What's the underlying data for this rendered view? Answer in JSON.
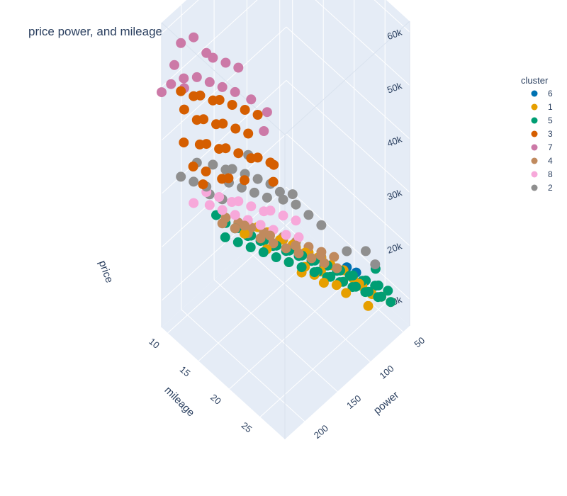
{
  "chart_data": {
    "type": "scatter3d",
    "title": "price power, and mileage",
    "axes": {
      "x": {
        "label": "power",
        "ticks": [
          "50",
          "100",
          "150",
          "200"
        ],
        "range": [
          40,
          230
        ]
      },
      "y": {
        "label": "mileage",
        "ticks": [
          "10",
          "15",
          "20",
          "25"
        ],
        "range": [
          9,
          29
        ]
      },
      "z": {
        "label": "price",
        "ticks": [
          "10k",
          "20k",
          "30k",
          "40k",
          "50k",
          "60k"
        ],
        "range": [
          5000,
          62000
        ]
      }
    },
    "legend": {
      "title": "cluster",
      "placement": "top-right",
      "entries": [
        {
          "name": "6",
          "color": "#0072B2"
        },
        {
          "name": "1",
          "color": "#E69F00"
        },
        {
          "name": "5",
          "color": "#009E73"
        },
        {
          "name": "3",
          "color": "#D55E00"
        },
        {
          "name": "7",
          "color": "#CC79A7"
        },
        {
          "name": "4",
          "color": "#C08A5E"
        },
        {
          "name": "8",
          "color": "#F7A8DA"
        },
        {
          "name": "2",
          "color": "#8F8F8F"
        }
      ]
    },
    "series": [
      {
        "name": "6",
        "color": "#0072B2",
        "points": [
          [
            60,
            24,
            10500
          ],
          [
            65,
            23,
            11500
          ],
          [
            70,
            22,
            12000
          ],
          [
            55,
            25,
            10000
          ]
        ]
      },
      {
        "name": "1",
        "color": "#E69F00",
        "points": [
          [
            60,
            25,
            9000
          ],
          [
            65,
            24,
            10000
          ],
          [
            70,
            23,
            11000
          ],
          [
            75,
            22,
            12000
          ],
          [
            80,
            22,
            12500
          ],
          [
            85,
            21,
            13000
          ],
          [
            90,
            20,
            14000
          ],
          [
            95,
            20,
            14500
          ],
          [
            100,
            19,
            15000
          ],
          [
            105,
            19,
            15500
          ],
          [
            110,
            18,
            16000
          ],
          [
            115,
            18,
            17000
          ],
          [
            120,
            17,
            17500
          ],
          [
            125,
            17,
            18000
          ],
          [
            130,
            16,
            19000
          ],
          [
            135,
            16,
            19500
          ],
          [
            140,
            15,
            20000
          ],
          [
            70,
            24,
            11000
          ],
          [
            85,
            23,
            12000
          ],
          [
            100,
            21,
            13500
          ],
          [
            115,
            20,
            15000
          ],
          [
            130,
            19,
            16500
          ],
          [
            145,
            17,
            18500
          ],
          [
            160,
            15,
            21000
          ],
          [
            75,
            26,
            9500
          ],
          [
            90,
            24,
            11500
          ],
          [
            105,
            22,
            13000
          ],
          [
            120,
            20,
            14500
          ],
          [
            55,
            26,
            9000
          ],
          [
            50,
            27,
            8500
          ],
          [
            95,
            23,
            12500
          ],
          [
            110,
            21,
            14000
          ]
        ]
      },
      {
        "name": "5",
        "color": "#009E73",
        "points": [
          [
            45,
            26,
            9000
          ],
          [
            50,
            25,
            9500
          ],
          [
            55,
            25,
            10000
          ],
          [
            60,
            24,
            10500
          ],
          [
            65,
            24,
            11000
          ],
          [
            70,
            23,
            11500
          ],
          [
            75,
            23,
            12000
          ],
          [
            80,
            22,
            12500
          ],
          [
            85,
            22,
            13000
          ],
          [
            90,
            21,
            13500
          ],
          [
            95,
            21,
            14000
          ],
          [
            100,
            20,
            14500
          ],
          [
            105,
            20,
            15000
          ],
          [
            110,
            19,
            15500
          ],
          [
            115,
            19,
            16000
          ],
          [
            120,
            18,
            16500
          ],
          [
            125,
            18,
            17000
          ],
          [
            130,
            17,
            17500
          ],
          [
            135,
            17,
            18000
          ],
          [
            140,
            16,
            18500
          ],
          [
            145,
            16,
            19000
          ],
          [
            150,
            15,
            19500
          ],
          [
            155,
            15,
            20000
          ],
          [
            160,
            14,
            21000
          ],
          [
            165,
            14,
            21500
          ],
          [
            170,
            13,
            22000
          ],
          [
            50,
            27,
            8500
          ],
          [
            55,
            26,
            9000
          ],
          [
            60,
            26,
            9500
          ],
          [
            65,
            25,
            10000
          ],
          [
            70,
            25,
            10500
          ],
          [
            75,
            24,
            11000
          ],
          [
            80,
            24,
            11500
          ],
          [
            85,
            23,
            12000
          ],
          [
            90,
            23,
            12500
          ],
          [
            95,
            22,
            13000
          ],
          [
            100,
            22,
            13500
          ],
          [
            105,
            21,
            14000
          ],
          [
            110,
            21,
            14500
          ],
          [
            120,
            20,
            15500
          ],
          [
            130,
            19,
            16500
          ],
          [
            140,
            18,
            17500
          ],
          [
            150,
            17,
            18500
          ],
          [
            160,
            16,
            19500
          ],
          [
            170,
            15,
            20500
          ],
          [
            180,
            14,
            21500
          ],
          [
            45,
            24,
            11000
          ],
          [
            175,
            12,
            23000
          ]
        ]
      },
      {
        "name": "3",
        "color": "#D55E00",
        "points": [
          [
            140,
            15,
            41000
          ],
          [
            150,
            14,
            42000
          ],
          [
            160,
            13,
            43000
          ],
          [
            170,
            12,
            44000
          ],
          [
            180,
            12,
            45000
          ],
          [
            190,
            11,
            46000
          ],
          [
            200,
            11,
            47000
          ],
          [
            210,
            10,
            48000
          ],
          [
            145,
            14,
            37000
          ],
          [
            155,
            13,
            38000
          ],
          [
            165,
            12,
            39000
          ],
          [
            175,
            12,
            40000
          ],
          [
            185,
            11,
            41000
          ],
          [
            195,
            11,
            42000
          ],
          [
            150,
            15,
            34000
          ],
          [
            160,
            14,
            35000
          ],
          [
            170,
            13,
            36000
          ],
          [
            180,
            13,
            37000
          ],
          [
            190,
            12,
            38000
          ],
          [
            200,
            12,
            39000
          ],
          [
            130,
            16,
            32000
          ],
          [
            140,
            15,
            33000
          ],
          [
            160,
            15,
            31000
          ],
          [
            175,
            14,
            32000
          ],
          [
            185,
            14,
            33000
          ],
          [
            200,
            13,
            35000
          ],
          [
            210,
            12,
            36000
          ],
          [
            215,
            11,
            40000
          ],
          [
            205,
            10,
            44000
          ],
          [
            195,
            12,
            31000
          ],
          [
            125,
            16,
            31000
          ],
          [
            135,
            17,
            30000
          ]
        ]
      },
      {
        "name": "7",
        "color": "#CC79A7",
        "points": [
          [
            200,
            11,
            58000
          ],
          [
            210,
            10,
            57000
          ],
          [
            190,
            12,
            55000
          ],
          [
            220,
            10,
            54000
          ],
          [
            180,
            12,
            53000
          ],
          [
            170,
            13,
            52000
          ],
          [
            160,
            14,
            51000
          ],
          [
            215,
            11,
            52000
          ],
          [
            225,
            10,
            51000
          ],
          [
            195,
            11,
            50000
          ],
          [
            185,
            12,
            49000
          ],
          [
            175,
            13,
            48000
          ],
          [
            165,
            14,
            47000
          ],
          [
            230,
            9,
            49000
          ],
          [
            150,
            15,
            45000
          ],
          [
            135,
            16,
            42000
          ],
          [
            205,
            10,
            48000
          ],
          [
            140,
            16,
            39000
          ]
        ]
      },
      {
        "name": "4",
        "color": "#C08A5E",
        "points": [
          [
            80,
            21,
            14000
          ],
          [
            90,
            20,
            15000
          ],
          [
            100,
            19,
            16000
          ],
          [
            110,
            18,
            17000
          ],
          [
            120,
            17,
            18000
          ],
          [
            130,
            16,
            19000
          ],
          [
            140,
            16,
            20000
          ],
          [
            150,
            15,
            21000
          ],
          [
            160,
            14,
            22000
          ],
          [
            170,
            13,
            23000
          ],
          [
            85,
            22,
            13500
          ],
          [
            95,
            21,
            14500
          ],
          [
            105,
            20,
            15500
          ],
          [
            115,
            19,
            16500
          ],
          [
            125,
            18,
            17500
          ],
          [
            135,
            17,
            18500
          ],
          [
            145,
            16,
            19500
          ],
          [
            155,
            15,
            20500
          ],
          [
            165,
            14,
            21500
          ],
          [
            175,
            13,
            22500
          ],
          [
            100,
            21,
            16500
          ],
          [
            120,
            19,
            18500
          ],
          [
            140,
            17,
            20500
          ],
          [
            160,
            15,
            22500
          ]
        ]
      },
      {
        "name": "8",
        "color": "#F7A8DA",
        "points": [
          [
            120,
            17,
            22000
          ],
          [
            130,
            16,
            23000
          ],
          [
            140,
            16,
            24000
          ],
          [
            150,
            15,
            25000
          ],
          [
            160,
            14,
            26000
          ],
          [
            170,
            14,
            27000
          ],
          [
            180,
            13,
            28000
          ],
          [
            190,
            12,
            29000
          ],
          [
            125,
            18,
            20000
          ],
          [
            135,
            17,
            21000
          ],
          [
            145,
            16,
            22000
          ],
          [
            155,
            15,
            23000
          ],
          [
            165,
            14,
            24000
          ],
          [
            175,
            13,
            25000
          ],
          [
            185,
            12,
            26000
          ],
          [
            200,
            11,
            27000
          ],
          [
            110,
            18,
            21000
          ],
          [
            115,
            19,
            19500
          ]
        ]
      },
      {
        "name": "2",
        "color": "#8F8F8F",
        "points": [
          [
            130,
            16,
            28000
          ],
          [
            140,
            15,
            29000
          ],
          [
            150,
            14,
            30000
          ],
          [
            160,
            13,
            31000
          ],
          [
            170,
            13,
            32000
          ],
          [
            180,
            12,
            33000
          ],
          [
            190,
            12,
            30000
          ],
          [
            200,
            11,
            31000
          ],
          [
            135,
            16,
            26000
          ],
          [
            145,
            15,
            27000
          ],
          [
            155,
            14,
            28000
          ],
          [
            165,
            13,
            29000
          ],
          [
            175,
            13,
            27000
          ],
          [
            185,
            12,
            28000
          ],
          [
            120,
            17,
            25000
          ],
          [
            110,
            18,
            24000
          ],
          [
            100,
            19,
            22000
          ],
          [
            90,
            20,
            20000
          ],
          [
            70,
            22,
            15000
          ],
          [
            60,
            24,
            16000
          ],
          [
            55,
            25,
            14000
          ],
          [
            125,
            17,
            27000
          ],
          [
            145,
            14,
            33000
          ],
          [
            195,
            11,
            34000
          ],
          [
            210,
            10,
            32000
          ],
          [
            115,
            18,
            26500
          ]
        ]
      }
    ]
  }
}
